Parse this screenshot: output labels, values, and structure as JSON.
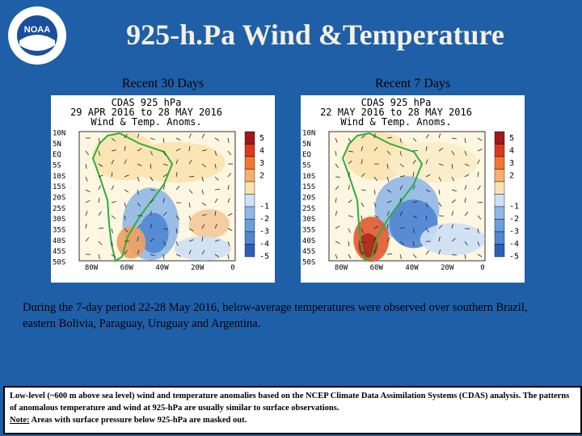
{
  "logo": {
    "text": "NOAA"
  },
  "title": "925-h.Pa Wind &Temperature",
  "panels": [
    {
      "heading": "Recent 30 Days",
      "map": {
        "lines": [
          "CDAS 925 hPa",
          "29 APR 2016 to 28 MAY 2016",
          "Wind & Temp. Anoms."
        ],
        "lat_labels": [
          "10N",
          "5N",
          "EQ",
          "5S",
          "10S",
          "15S",
          "20S",
          "25S",
          "30S",
          "35S",
          "40S",
          "45S",
          "50S"
        ],
        "lon_labels": [
          "80W",
          "60W",
          "40W",
          "20W",
          "0"
        ],
        "colorbar_labels": [
          "5",
          "4",
          "3",
          "2",
          "-1",
          "-2",
          "-3",
          "-4",
          "-5"
        ]
      }
    },
    {
      "heading": "Recent 7 Days",
      "map": {
        "lines": [
          "CDAS 925 hPa",
          "22 MAY 2016 to 28 MAY 2016",
          "Wind & Temp. Anoms."
        ],
        "lat_labels": [
          "10N",
          "5N",
          "EQ",
          "5S",
          "10S",
          "15S",
          "20S",
          "25S",
          "30S",
          "35S",
          "40S",
          "45S",
          "50S"
        ],
        "lon_labels": [
          "80W",
          "60W",
          "40W",
          "20W",
          "0"
        ],
        "colorbar_labels": [
          "5",
          "4",
          "3",
          "2",
          "-1",
          "-2",
          "-3",
          "-4",
          "-5"
        ]
      }
    }
  ],
  "description": "During the 7-day period 22-28 May 2016, below-average temperatures were observed over southern Brazil, eastern Bolivia, Paraguay, Uruguay and Argentina.",
  "footnote": {
    "text": "Low-level (~600 m above sea level) wind and temperature anomalies based on the NCEP Climate Data Assimilation Systems (CDAS) analysis. The patterns of anomalous temperature and wind at 925-hPa are usually similar to surface observations.",
    "note_label": "Note:",
    "note_text": " Areas with surface pressure below 925-hPa are masked out."
  }
}
